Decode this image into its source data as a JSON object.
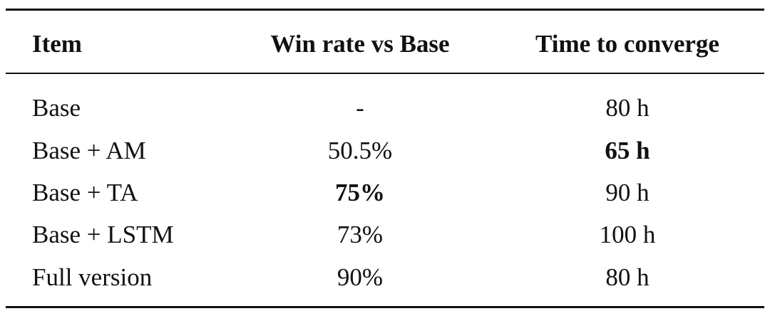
{
  "table": {
    "header": [
      "Item",
      "Win rate vs Base",
      "Time to converge"
    ],
    "rows": [
      [
        "Base",
        "-",
        "80 h"
      ],
      [
        "Base + AM",
        "50.5%",
        "65 h"
      ],
      [
        "Base + TA",
        "75%",
        "90 h"
      ],
      [
        "Base + LSTM",
        "73%",
        "100 h"
      ],
      [
        "Full version",
        "90%",
        "80 h"
      ]
    ]
  }
}
